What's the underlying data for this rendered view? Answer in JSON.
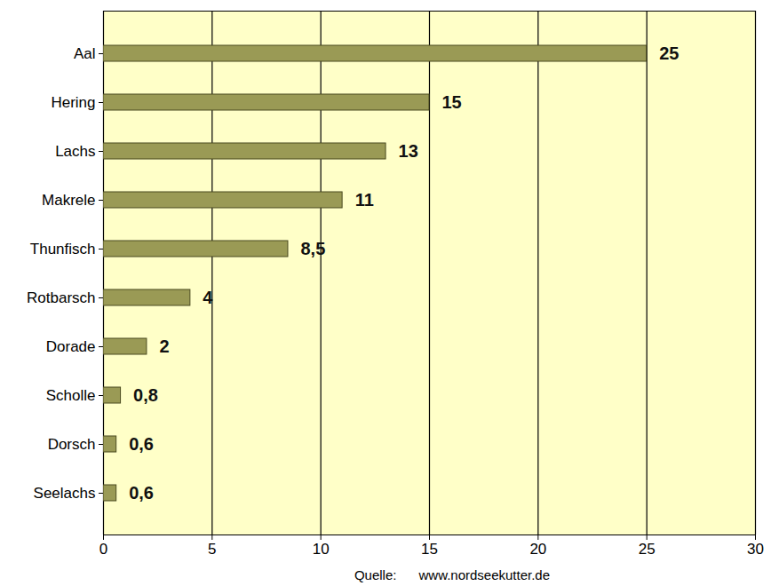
{
  "chart_data": {
    "type": "bar",
    "orientation": "horizontal",
    "categories": [
      "Aal",
      "Hering",
      "Lachs",
      "Makrele",
      "Thunfisch",
      "Rotbarsch",
      "Dorade",
      "Scholle",
      "Dorsch",
      "Seelachs"
    ],
    "values": [
      25,
      15,
      13,
      11,
      8.5,
      4,
      2,
      0.8,
      0.6,
      0.6
    ],
    "value_labels": [
      "25",
      "15",
      "13",
      "11",
      "8,5",
      "4",
      "2",
      "0,8",
      "0,6",
      "0,6"
    ],
    "data_labels": true,
    "color": "#9a9a55",
    "xlim": [
      0,
      30
    ],
    "xticks": [
      0,
      5,
      10,
      15,
      20,
      25,
      30
    ],
    "grid": true,
    "caption": "Quelle:      www.nordseekutter.de"
  }
}
